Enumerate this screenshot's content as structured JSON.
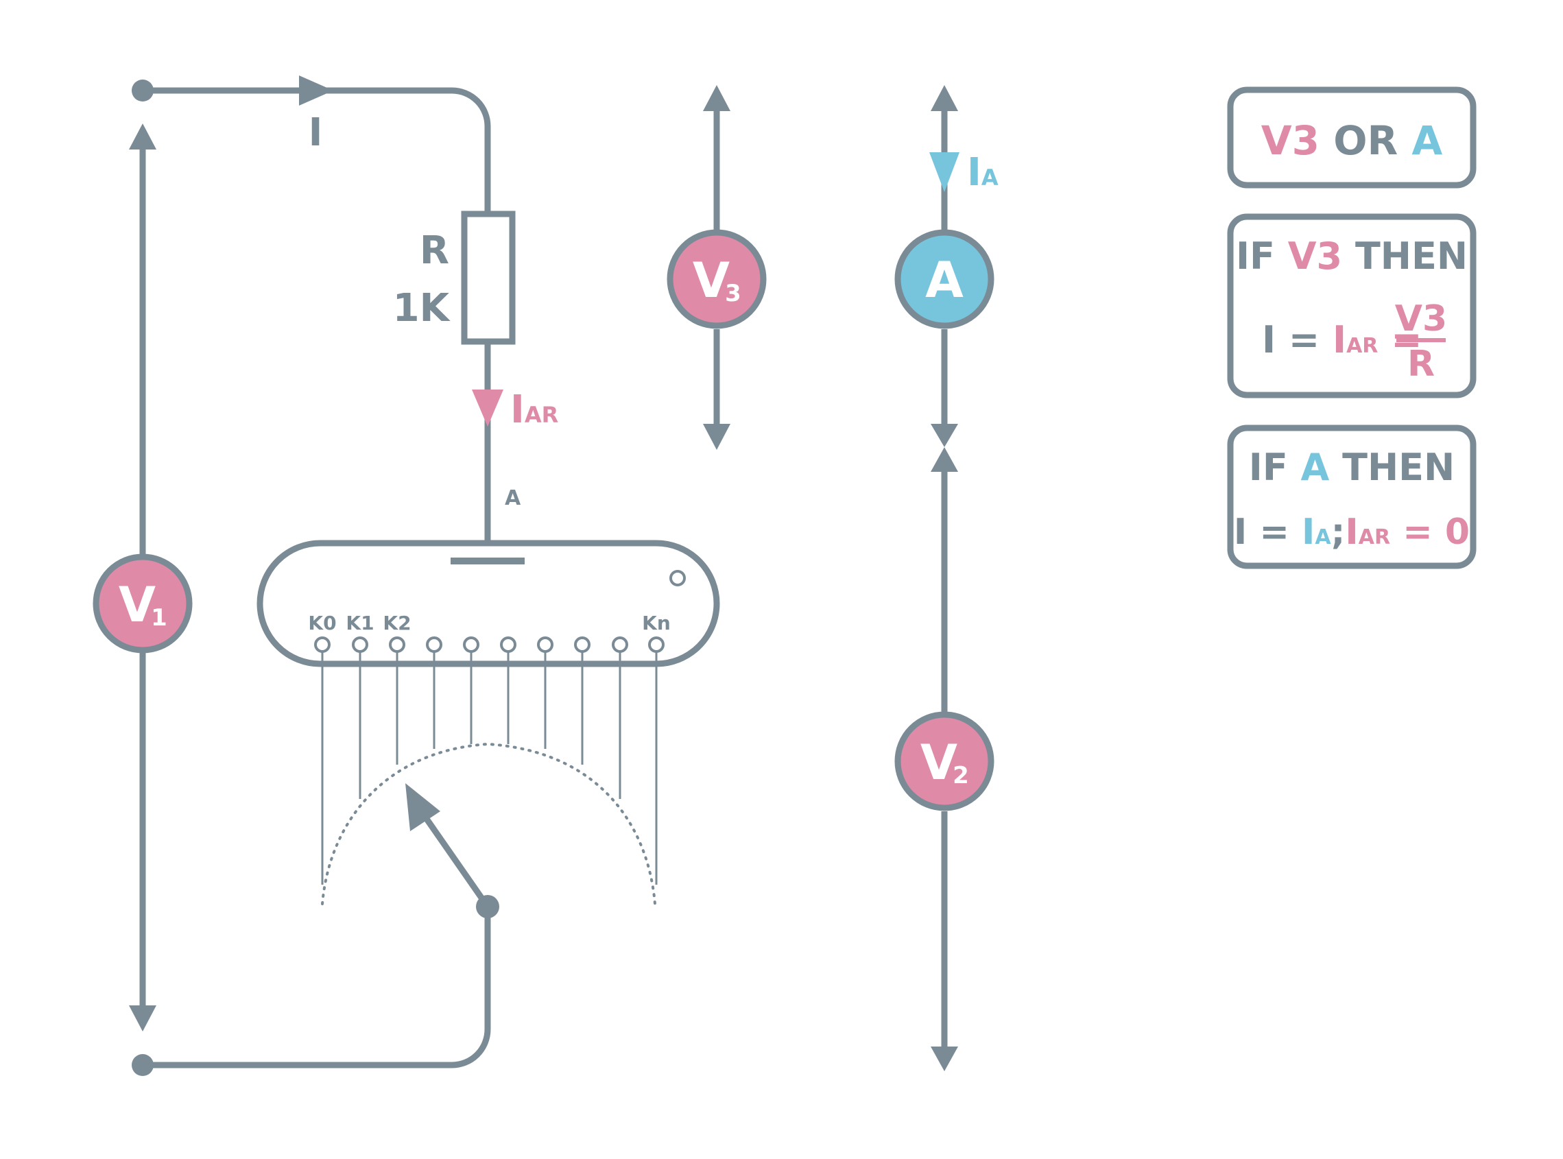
{
  "colors": {
    "wire": "#7a8b96",
    "pink": "#df8aa7",
    "blue": "#77c5dc",
    "background": "#ffffff"
  },
  "labels": {
    "current_main": "I",
    "resistor_name": "R",
    "resistor_value": "1K",
    "current_ar_main": "I",
    "current_ar_sub": "AR",
    "point_a": "A",
    "current_a_main": "I",
    "current_a_sub": "A"
  },
  "meters": {
    "v1": {
      "main": "V",
      "sub": "1"
    },
    "v2": {
      "main": "V",
      "sub": "2"
    },
    "v3": {
      "main": "V",
      "sub": "3"
    },
    "ammeter": {
      "main": "A"
    }
  },
  "switch": {
    "contacts": [
      "K0",
      "K1",
      "K2",
      "",
      "",
      "",
      "",
      "",
      "",
      "Kn"
    ]
  },
  "info_boxes": {
    "box1": {
      "v3": "V3",
      "or": "OR",
      "a": "A"
    },
    "box2": {
      "if": "IF",
      "v3": "V3",
      "then": "THEN",
      "i": "I",
      "eq1": "=",
      "iar_main": "I",
      "iar_sub": "AR",
      "eq2": "=",
      "frac_num": "V3",
      "frac_den": "R"
    },
    "box3": {
      "if": "IF",
      "a": "A",
      "then": "THEN",
      "i": "I",
      "eq1": "=",
      "ia_main": "I",
      "ia_sub": "A",
      "semi": ";",
      "iar_main": "I",
      "iar_sub": "AR",
      "eq2": "=",
      "zero": "0"
    }
  }
}
